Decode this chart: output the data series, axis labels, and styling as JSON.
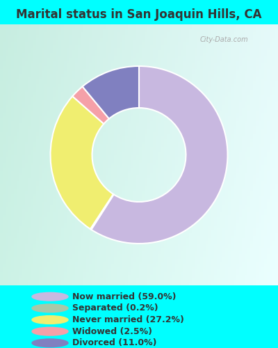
{
  "title": "Marital status in San Joaquin Hills, CA",
  "title_fontsize": 12,
  "outer_bg_color": "#00FFFF",
  "chart_bg_color_tl": "#c8ece0",
  "chart_bg_color_br": "#f0faf5",
  "slices": [
    {
      "label": "Now married (59.0%)",
      "value": 59.0,
      "color": "#c8b8e0"
    },
    {
      "label": "Separated (0.2%)",
      "value": 0.2,
      "color": "#a8c8a8"
    },
    {
      "label": "Never married (27.2%)",
      "value": 27.2,
      "color": "#f0ee70"
    },
    {
      "label": "Widowed (2.5%)",
      "value": 2.5,
      "color": "#f5a0a8"
    },
    {
      "label": "Divorced (11.0%)",
      "value": 11.0,
      "color": "#8080c0"
    }
  ],
  "legend_colors": [
    "#c8b8e0",
    "#a8c8a8",
    "#f0ee70",
    "#f5a0a8",
    "#8080c0"
  ],
  "legend_labels": [
    "Now married (59.0%)",
    "Separated (0.2%)",
    "Never married (27.2%)",
    "Widowed (2.5%)",
    "Divorced (11.0%)"
  ],
  "donut_width": 0.4,
  "startangle": 90,
  "watermark": "City-Data.com",
  "watermark_color": "#aaaaaa",
  "text_color": "#333333"
}
